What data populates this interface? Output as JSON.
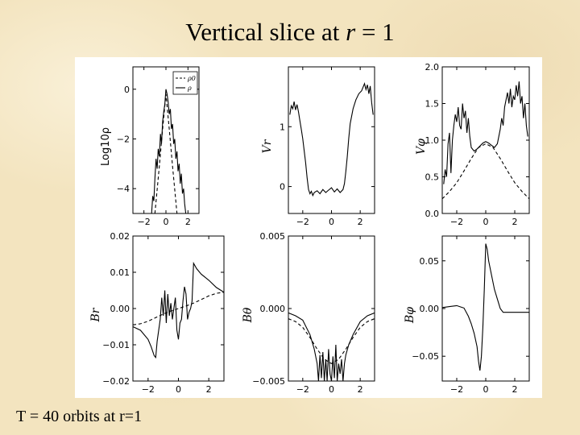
{
  "slide": {
    "title_prefix": "Vertical slice at ",
    "title_var": "r",
    "title_suffix": " = 1",
    "footer": "T = 40 orbits at r=1"
  },
  "chart_data": [
    {
      "type": "line",
      "id": "rho",
      "ylabel": "Log10ρ",
      "ylabel_style": "plain",
      "xlim": [
        -3.0,
        3.0
      ],
      "ylim": [
        -5.0,
        0.9
      ],
      "xticks": [
        -2,
        0,
        2
      ],
      "xtick_labels": [
        "−2",
        "0",
        "2"
      ],
      "yticks": [
        0,
        -2,
        -4
      ],
      "ytick_labels": [
        "0",
        "−2",
        "−4"
      ],
      "tick_side": "left",
      "legend": {
        "placement": "top-right",
        "entries": [
          {
            "label": "ρ0",
            "style": "dashed"
          },
          {
            "label": "ρ",
            "style": "solid"
          }
        ]
      },
      "series": [
        {
          "style": "dashed",
          "x": [
            -1.0,
            -0.6,
            -0.3,
            0.0,
            0.3,
            0.6,
            1.0
          ],
          "y": [
            -5.0,
            -3.1,
            -1.6,
            -0.2,
            -1.6,
            -3.1,
            -5.0
          ]
        },
        {
          "style": "solid",
          "x": [
            -1.3,
            -1.2,
            -1.1,
            -1.0,
            -0.9,
            -0.8,
            -0.7,
            -0.6,
            -0.5,
            -0.4,
            -0.3,
            -0.2,
            -0.1,
            0.0,
            0.1,
            0.2,
            0.3,
            0.4,
            0.5,
            0.6,
            0.7,
            0.8,
            0.9,
            1.0,
            1.1,
            1.2,
            1.3,
            1.4,
            1.5,
            1.6,
            1.7,
            1.8
          ],
          "y": [
            -5.0,
            -4.3,
            -4.5,
            -3.6,
            -2.8,
            -3.2,
            -2.4,
            -2.7,
            -1.8,
            -2.2,
            -1.3,
            -0.9,
            -0.6,
            0.0,
            -0.2,
            -0.5,
            -1.0,
            -0.8,
            -1.6,
            -1.4,
            -2.2,
            -2.0,
            -2.8,
            -2.5,
            -3.3,
            -3.0,
            -3.8,
            -3.4,
            -4.2,
            -4.0,
            -4.6,
            -5.0
          ]
        }
      ]
    },
    {
      "type": "line",
      "id": "vr",
      "ylabel": "Vr",
      "xlim": [
        -3.0,
        3.0
      ],
      "ylim": [
        -0.45,
        2.0
      ],
      "xticks": [
        -2,
        0,
        2
      ],
      "xtick_labels": [
        "−2",
        "0",
        "2"
      ],
      "yticks": [
        1,
        0
      ],
      "ytick_labels": [
        "1",
        "0"
      ],
      "tick_side": "left",
      "series": [
        {
          "style": "solid",
          "x": [
            -2.9,
            -2.8,
            -2.7,
            -2.6,
            -2.5,
            -2.4,
            -2.3,
            -2.2,
            -2.1,
            -2.0,
            -1.9,
            -1.8,
            -1.7,
            -1.6,
            -1.5,
            -1.4,
            -1.3,
            -1.2,
            -1.0,
            -0.8,
            -0.6,
            -0.4,
            -0.2,
            0.0,
            0.2,
            0.4,
            0.6,
            0.8,
            0.9,
            1.0,
            1.1,
            1.2,
            1.3,
            1.5,
            1.7,
            1.9,
            2.1,
            2.3,
            2.4,
            2.5,
            2.6,
            2.7,
            2.8,
            2.9
          ],
          "y": [
            1.2,
            1.35,
            1.3,
            1.42,
            1.28,
            1.37,
            1.25,
            1.1,
            0.95,
            0.8,
            0.6,
            0.4,
            0.15,
            -0.05,
            -0.12,
            -0.08,
            -0.15,
            -0.1,
            -0.07,
            -0.12,
            -0.05,
            -0.1,
            -0.06,
            -0.02,
            -0.09,
            -0.04,
            -0.1,
            -0.05,
            0.05,
            0.25,
            0.5,
            0.8,
            1.05,
            1.3,
            1.45,
            1.55,
            1.6,
            1.72,
            1.62,
            1.7,
            1.55,
            1.68,
            1.4,
            1.2
          ]
        }
      ]
    },
    {
      "type": "line",
      "id": "vphi",
      "ylabel": "Vφ",
      "xlim": [
        -3.0,
        3.0
      ],
      "ylim": [
        0.0,
        2.0
      ],
      "xticks": [
        -2,
        0,
        2
      ],
      "xtick_labels": [
        "−2",
        "0",
        "2"
      ],
      "yticks": [
        2.0,
        1.5,
        1.0,
        0.5,
        0.0
      ],
      "ytick_labels": [
        "2.0",
        "1.5",
        "1.0",
        "0.5",
        "0.0"
      ],
      "tick_side": "left",
      "series": [
        {
          "style": "dashed",
          "x": [
            -3.0,
            -2.5,
            -2.0,
            -1.5,
            -1.0,
            -0.5,
            0.0,
            0.5,
            1.0,
            1.5,
            2.0,
            2.5,
            3.0
          ],
          "y": [
            0.2,
            0.3,
            0.42,
            0.58,
            0.75,
            0.9,
            0.95,
            0.9,
            0.75,
            0.58,
            0.42,
            0.3,
            0.2
          ]
        },
        {
          "style": "solid",
          "x": [
            -2.9,
            -2.8,
            -2.7,
            -2.6,
            -2.5,
            -2.4,
            -2.3,
            -2.2,
            -2.1,
            -2.0,
            -1.9,
            -1.8,
            -1.7,
            -1.6,
            -1.5,
            -1.4,
            -1.3,
            -1.2,
            -1.1,
            -1.0,
            -0.8,
            -0.6,
            -0.4,
            -0.2,
            0.0,
            0.2,
            0.4,
            0.6,
            0.8,
            0.9,
            1.0,
            1.1,
            1.2,
            1.3,
            1.4,
            1.5,
            1.6,
            1.7,
            1.8,
            1.9,
            2.0,
            2.1,
            2.2,
            2.3,
            2.4,
            2.5,
            2.6,
            2.7,
            2.8,
            2.9
          ],
          "y": [
            0.4,
            0.6,
            0.5,
            0.95,
            1.1,
            0.55,
            1.0,
            1.2,
            1.35,
            1.25,
            1.45,
            1.2,
            1.15,
            1.5,
            1.3,
            1.4,
            1.1,
            1.3,
            1.05,
            0.9,
            0.85,
            0.88,
            0.92,
            0.96,
            0.98,
            0.96,
            0.93,
            0.9,
            0.95,
            1.05,
            1.15,
            1.3,
            1.2,
            1.45,
            1.55,
            1.65,
            1.5,
            1.7,
            1.45,
            1.6,
            1.55,
            1.75,
            1.6,
            1.8,
            1.5,
            1.6,
            1.3,
            1.5,
            1.2,
            1.05
          ]
        }
      ]
    },
    {
      "type": "line",
      "id": "br",
      "ylabel": "Br",
      "xlim": [
        -3.0,
        3.0
      ],
      "ylim": [
        -0.02,
        0.02
      ],
      "xticks": [
        -2,
        0,
        2
      ],
      "xtick_labels": [
        "−2",
        "0",
        "2"
      ],
      "yticks": [
        0.02,
        0.01,
        0.0,
        -0.01,
        -0.02
      ],
      "ytick_labels": [
        "0.02",
        "0.01",
        "0.00",
        "−0.01",
        "−0.02"
      ],
      "tick_side": "left",
      "series": [
        {
          "style": "dashed",
          "x": [
            -3.0,
            -2.5,
            -2.0,
            -1.5,
            -1.0,
            -0.5,
            0.0,
            0.5,
            1.0,
            1.5,
            2.0,
            2.5,
            3.0
          ],
          "y": [
            -0.0045,
            -0.0042,
            -0.0035,
            -0.0025,
            -0.0015,
            -0.0007,
            0.0,
            0.0007,
            0.0015,
            0.0025,
            0.0035,
            0.0042,
            0.0045
          ]
        },
        {
          "style": "solid",
          "x": [
            -3.0,
            -2.5,
            -2.0,
            -1.8,
            -1.6,
            -1.5,
            -1.4,
            -1.3,
            -1.2,
            -1.1,
            -1.0,
            -0.9,
            -0.8,
            -0.7,
            -0.6,
            -0.5,
            -0.4,
            -0.3,
            -0.2,
            -0.1,
            0.0,
            0.1,
            0.2,
            0.3,
            0.4,
            0.5,
            0.6,
            0.7,
            0.8,
            0.9,
            1.0,
            1.2,
            1.5,
            2.0,
            2.5,
            3.0
          ],
          "y": [
            -0.005,
            -0.006,
            -0.0085,
            -0.0105,
            -0.013,
            -0.0135,
            -0.009,
            -0.006,
            -0.003,
            0.003,
            -0.002,
            0.005,
            -0.004,
            0.004,
            -0.002,
            0.0015,
            -0.003,
            0.0,
            0.003,
            -0.006,
            -0.0085,
            -0.004,
            -0.003,
            0.002,
            0.006,
            0.004,
            -0.003,
            -0.001,
            0.0,
            0.002,
            0.0125,
            0.011,
            0.0095,
            0.0078,
            0.0058,
            0.0045
          ]
        }
      ]
    },
    {
      "type": "line",
      "id": "btheta",
      "ylabel": "Bθ",
      "xlim": [
        -3.0,
        3.0
      ],
      "ylim": [
        -0.005,
        0.005
      ],
      "xticks": [
        -2,
        0,
        2
      ],
      "xtick_labels": [
        "−2",
        "0",
        "2"
      ],
      "yticks": [
        0.005,
        0.0,
        -0.005
      ],
      "ytick_labels": [
        "0.005",
        "0.000",
        "−0.005"
      ],
      "tick_side": "left",
      "series": [
        {
          "style": "dashed",
          "x": [
            -3.0,
            -2.5,
            -2.0,
            -1.5,
            -1.0,
            -0.5,
            0.0,
            0.5,
            1.0,
            1.5,
            2.0,
            2.5,
            3.0
          ],
          "y": [
            -0.0007,
            -0.0009,
            -0.0013,
            -0.002,
            -0.0028,
            -0.0035,
            -0.0038,
            -0.0035,
            -0.0028,
            -0.002,
            -0.0013,
            -0.0009,
            -0.0007
          ]
        },
        {
          "style": "solid",
          "x": [
            -3.0,
            -2.5,
            -2.0,
            -1.5,
            -1.2,
            -1.0,
            -0.9,
            -0.8,
            -0.7,
            -0.6,
            -0.5,
            -0.4,
            -0.3,
            -0.2,
            -0.1,
            0.0,
            0.1,
            0.2,
            0.3,
            0.4,
            0.5,
            0.6,
            0.7,
            0.8,
            0.9,
            1.0,
            1.2,
            1.5,
            2.0,
            2.5,
            3.0
          ],
          "y": [
            -0.0003,
            -0.0005,
            -0.0008,
            -0.0018,
            -0.0028,
            -0.0038,
            -0.005,
            -0.0032,
            -0.0048,
            -0.003,
            -0.005,
            -0.0035,
            -0.005,
            -0.0028,
            -0.0045,
            -0.005,
            -0.0033,
            -0.0048,
            -0.0025,
            -0.005,
            -0.0038,
            -0.0045,
            -0.0035,
            -0.005,
            -0.0038,
            -0.0032,
            -0.0025,
            -0.0018,
            -0.0009,
            -0.0005,
            -0.0003
          ]
        }
      ]
    },
    {
      "type": "line",
      "id": "bphi",
      "ylabel": "Bφ",
      "xlim": [
        -3.0,
        3.0
      ],
      "ylim": [
        -0.076,
        0.076
      ],
      "xticks": [
        -2,
        0,
        2
      ],
      "xtick_labels": [
        "−2",
        "0",
        "2"
      ],
      "yticks": [
        0.05,
        0.0,
        -0.05
      ],
      "ytick_labels": [
        "0.05",
        "0.00",
        "−0.05"
      ],
      "tick_side": "left",
      "series": [
        {
          "style": "solid",
          "x": [
            -3.0,
            -2.5,
            -2.0,
            -1.5,
            -1.2,
            -1.0,
            -0.8,
            -0.6,
            -0.5,
            -0.4,
            -0.3,
            -0.2,
            -0.1,
            0.0,
            0.1,
            0.2,
            0.4,
            0.6,
            0.8,
            1.0,
            1.2,
            1.5,
            2.0,
            2.5,
            3.0
          ],
          "y": [
            0.001,
            0.002,
            0.003,
            0.0005,
            -0.008,
            -0.016,
            -0.026,
            -0.04,
            -0.055,
            -0.065,
            -0.05,
            -0.02,
            0.02,
            0.068,
            0.062,
            0.05,
            0.035,
            0.02,
            0.01,
            0.0,
            -0.004,
            -0.004,
            -0.004,
            -0.004,
            -0.004
          ]
        }
      ]
    }
  ]
}
